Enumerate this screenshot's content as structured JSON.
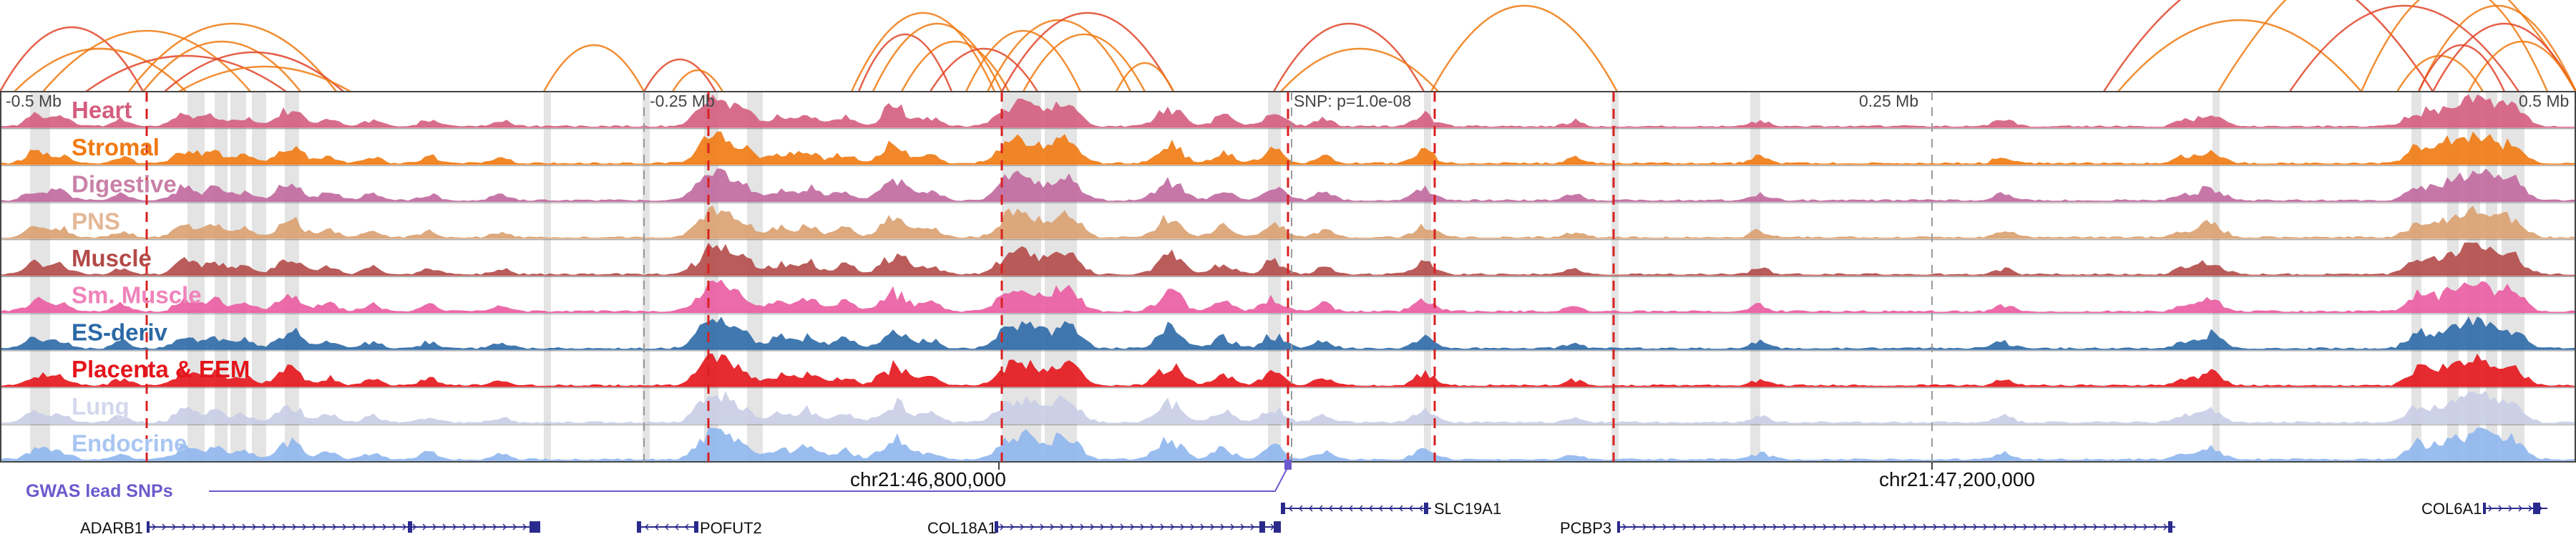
{
  "browser": {
    "tracks": [
      {
        "name": "Heart",
        "color": "#d45d7e",
        "label_color": "#d45d7e"
      },
      {
        "name": "Stromal",
        "color": "#f07a12",
        "label_color": "#f07a12"
      },
      {
        "name": "Digestive",
        "color": "#c0689f",
        "label_color": "#c981a8"
      },
      {
        "name": "PNS",
        "color": "#d9a06f",
        "label_color": "#e3b897"
      },
      {
        "name": "Muscle",
        "color": "#b34a48",
        "label_color": "#b34a48"
      },
      {
        "name": "Sm. Muscle",
        "color": "#ea5ba1",
        "label_color": "#f083ba"
      },
      {
        "name": "ES-deriv",
        "color": "#2c69a6",
        "label_color": "#2c69a6"
      },
      {
        "name": "Placenta & EEM",
        "color": "#e3151b",
        "label_color": "#e3151b"
      },
      {
        "name": "Lung",
        "color": "#c8cde6",
        "label_color": "#d4d8ed"
      },
      {
        "name": "Endocrine",
        "color": "#8fb6ee",
        "label_color": "#a9c6f2"
      }
    ],
    "ruler": {
      "left": "-0.5 Mb",
      "left_mid": "-0.25 Mb",
      "snp": "SNP: p=1.0e-08",
      "right_mid": "0.25 Mb",
      "right": "0.5 Mb"
    },
    "coords": {
      "a": "chr21:46,800,000",
      "b": "chr21:47,200,000"
    },
    "gwas_label": "GWAS lead SNPs",
    "genes": [
      {
        "name": "ADARB1",
        "strand": "+"
      },
      {
        "name": "POFUT2",
        "strand": "-"
      },
      {
        "name": "COL18A1",
        "strand": "+"
      },
      {
        "name": "SLC19A1",
        "strand": "-"
      },
      {
        "name": "PCBP3",
        "strand": "+"
      },
      {
        "name": "COL6A1",
        "strand": "+"
      }
    ],
    "colors": {
      "loop": "#f07a12",
      "loop_dark": "#e0452a",
      "highlight": "#d9d9d9",
      "dashed_red": "#d92020",
      "dashed_grey": "#999999",
      "gene": "#2a2a8c",
      "gwas": "#6a5acd",
      "axis": "#444444"
    }
  }
}
